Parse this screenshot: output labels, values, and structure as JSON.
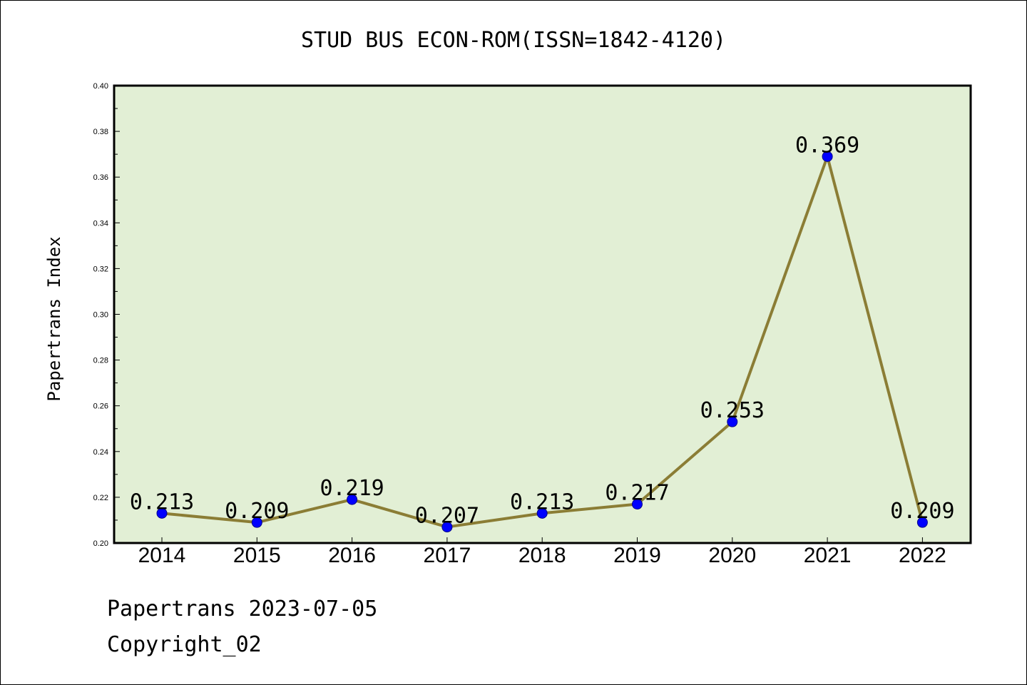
{
  "chart_data": {
    "type": "line",
    "title": "STUD BUS ECON-ROM(ISSN=1842-4120)",
    "xlabel": "",
    "ylabel": "Papertrans Index",
    "categories": [
      "2014",
      "2015",
      "2016",
      "2017",
      "2018",
      "2019",
      "2020",
      "2021",
      "2022"
    ],
    "series": [
      {
        "values": [
          0.213,
          0.209,
          0.219,
          0.207,
          0.213,
          0.217,
          0.253,
          0.369,
          0.209
        ],
        "data_labels": [
          "0.213",
          "0.209",
          "0.219",
          "0.207",
          "0.213",
          "0.217",
          "0.253",
          "0.369",
          "0.209"
        ]
      }
    ],
    "ylim": [
      0.2,
      0.4
    ],
    "yticks": [
      0.2,
      0.22,
      0.24,
      0.26,
      0.28,
      0.3,
      0.32,
      0.34,
      0.36,
      0.38,
      0.4
    ],
    "ytick_labels": [
      "0.20",
      "0.22",
      "0.24",
      "0.26",
      "0.28",
      "0.30",
      "0.32",
      "0.34",
      "0.36",
      "0.38",
      "0.40"
    ],
    "grid": false,
    "legend": "none",
    "colors": {
      "plot_background": "#e2efd5",
      "line": "#8b7d35",
      "marker": "#0000ff"
    }
  },
  "footer": {
    "source": "Papertrans 2023-07-05",
    "copyright": "Copyright_02"
  }
}
